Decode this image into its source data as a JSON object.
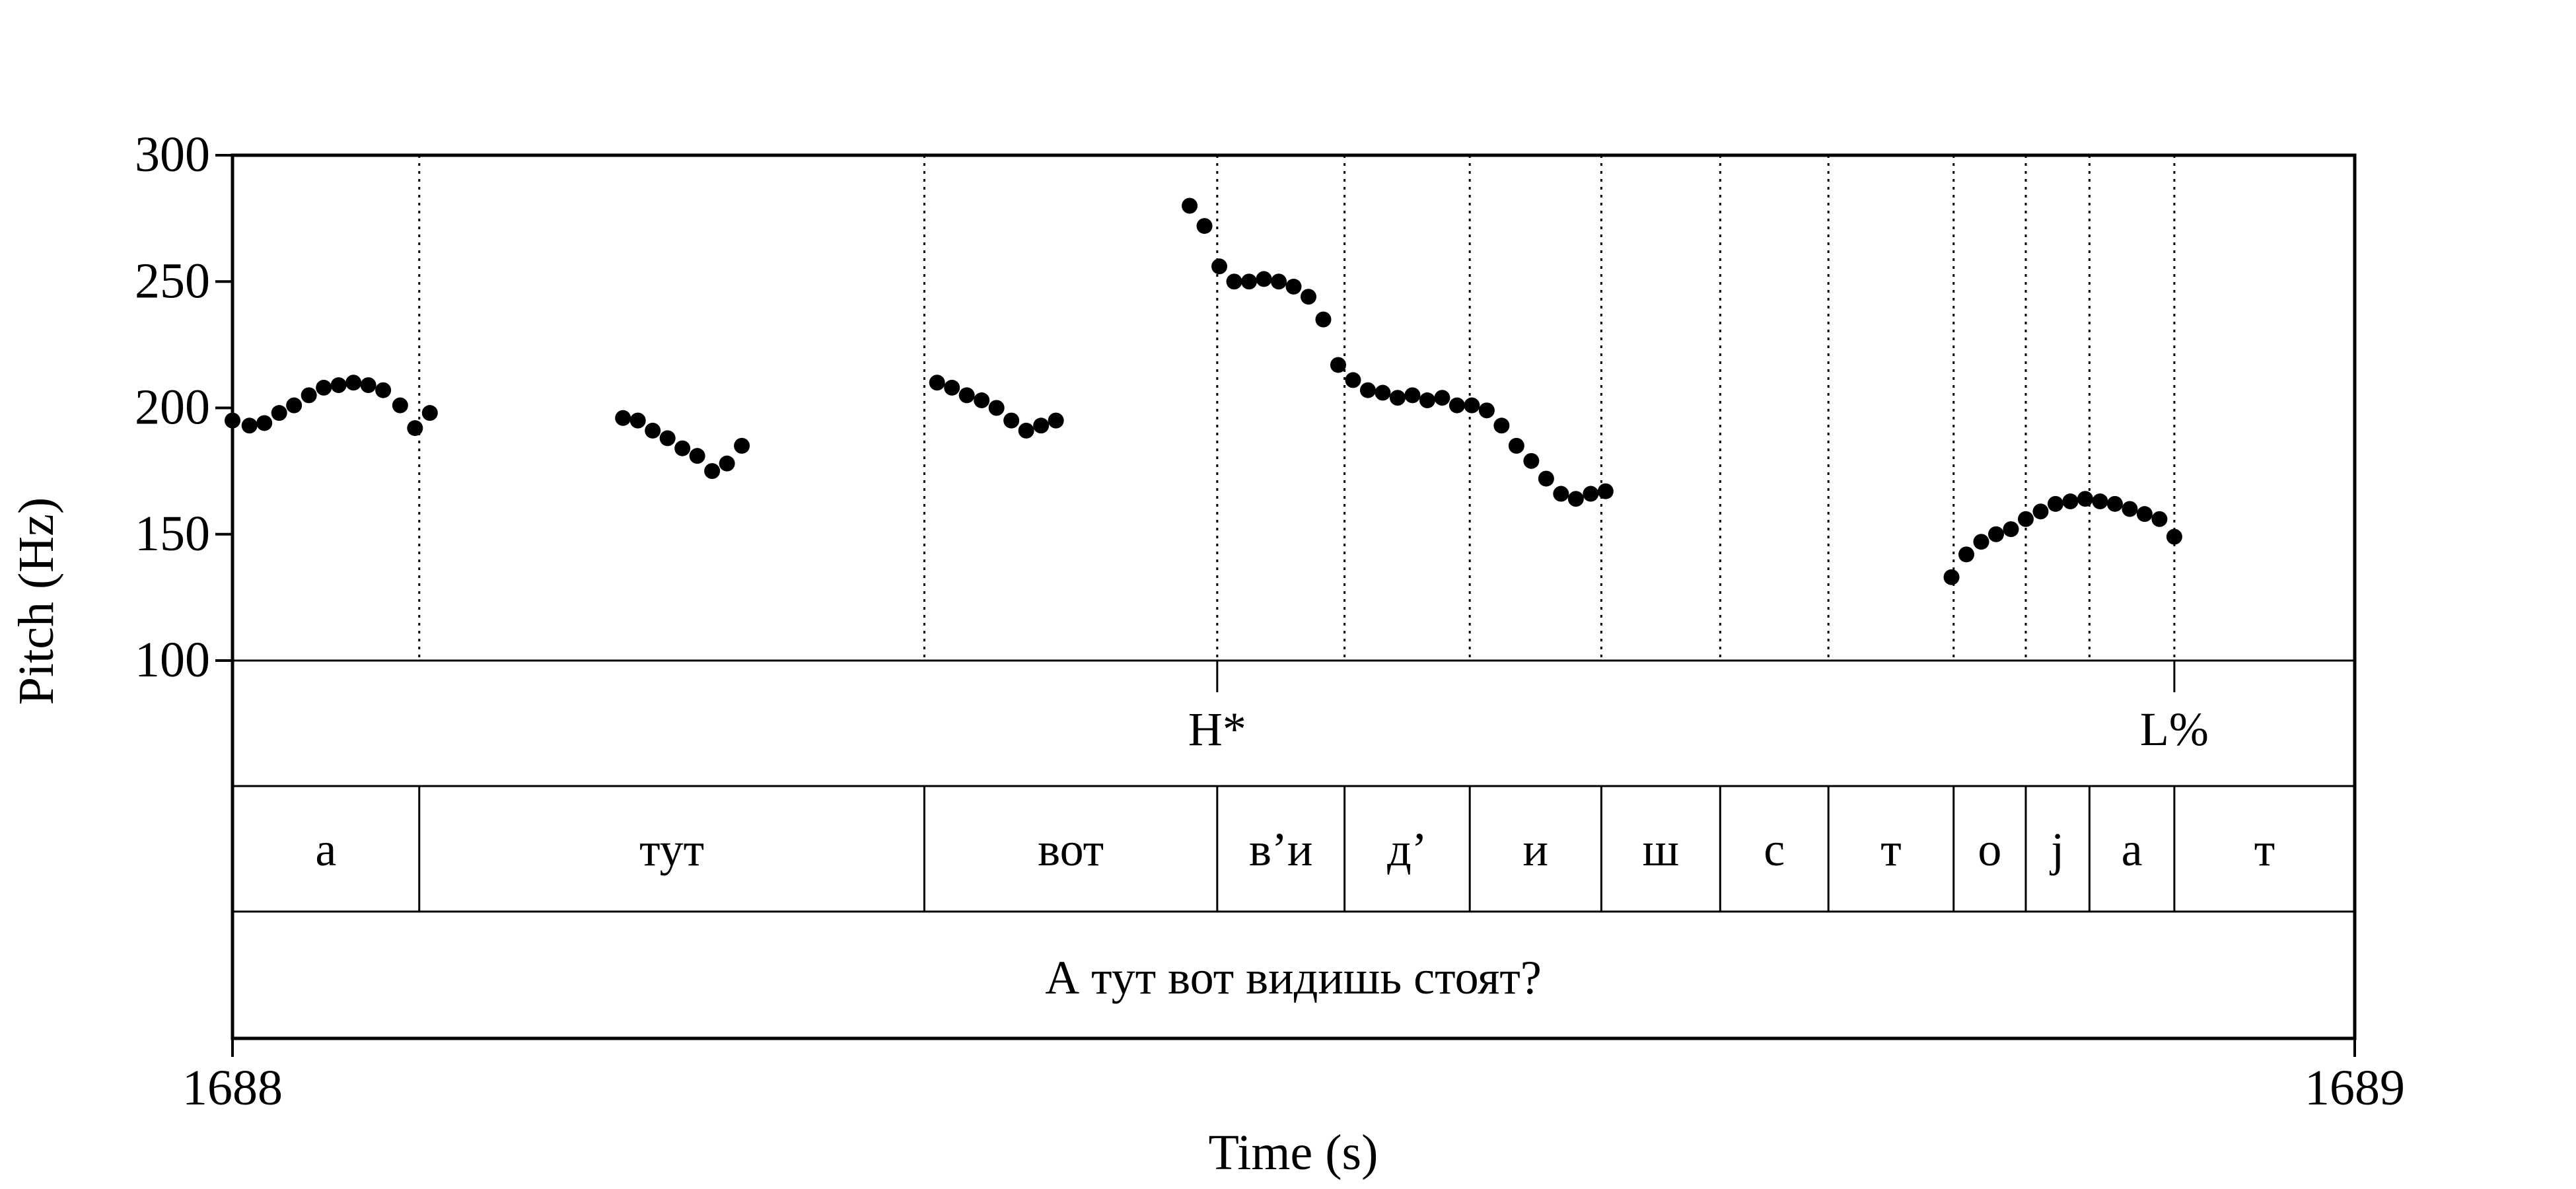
{
  "chart_data": {
    "type": "scatter",
    "xlabel": "Time (s)",
    "ylabel": "Pitch (Hz)",
    "xlim": [
      1688,
      1689
    ],
    "ylim": [
      100,
      300
    ],
    "x_ticks": [
      "1688",
      "1689"
    ],
    "y_ticks": [
      100,
      150,
      200,
      250,
      300
    ],
    "grid": false,
    "series": [
      {
        "points": [
          [
            1688.0,
            195
          ],
          [
            1688.008,
            193
          ],
          [
            1688.015,
            194
          ],
          [
            1688.022,
            198
          ],
          [
            1688.029,
            201
          ],
          [
            1688.036,
            205
          ],
          [
            1688.043,
            208
          ],
          [
            1688.05,
            209
          ],
          [
            1688.057,
            210
          ],
          [
            1688.064,
            209
          ],
          [
            1688.071,
            207
          ],
          [
            1688.079,
            201
          ],
          [
            1688.086,
            192
          ],
          [
            1688.093,
            198
          ],
          [
            1688.184,
            196
          ],
          [
            1688.191,
            195
          ],
          [
            1688.198,
            191
          ],
          [
            1688.205,
            188
          ],
          [
            1688.212,
            184
          ],
          [
            1688.219,
            181
          ],
          [
            1688.226,
            175
          ],
          [
            1688.233,
            178
          ],
          [
            1688.24,
            185
          ],
          [
            1688.332,
            210
          ],
          [
            1688.339,
            208
          ],
          [
            1688.346,
            205
          ],
          [
            1688.353,
            203
          ],
          [
            1688.36,
            200
          ],
          [
            1688.367,
            195
          ],
          [
            1688.374,
            191
          ],
          [
            1688.381,
            193
          ],
          [
            1688.388,
            195
          ],
          [
            1688.451,
            280
          ],
          [
            1688.458,
            272
          ],
          [
            1688.465,
            256
          ],
          [
            1688.472,
            250
          ],
          [
            1688.479,
            250
          ],
          [
            1688.486,
            251
          ],
          [
            1688.493,
            250
          ],
          [
            1688.5,
            248
          ],
          [
            1688.507,
            244
          ],
          [
            1688.514,
            235
          ],
          [
            1688.521,
            217
          ],
          [
            1688.528,
            211
          ],
          [
            1688.535,
            207
          ],
          [
            1688.542,
            206
          ],
          [
            1688.549,
            204
          ],
          [
            1688.556,
            205
          ],
          [
            1688.563,
            203
          ],
          [
            1688.57,
            204
          ],
          [
            1688.577,
            201
          ],
          [
            1688.584,
            201
          ],
          [
            1688.591,
            199
          ],
          [
            1688.598,
            193
          ],
          [
            1688.605,
            185
          ],
          [
            1688.612,
            179
          ],
          [
            1688.619,
            172
          ],
          [
            1688.626,
            166
          ],
          [
            1688.633,
            164
          ],
          [
            1688.64,
            166
          ],
          [
            1688.647,
            167
          ],
          [
            1688.81,
            133
          ],
          [
            1688.817,
            142
          ],
          [
            1688.824,
            147
          ],
          [
            1688.831,
            150
          ],
          [
            1688.838,
            152
          ],
          [
            1688.845,
            156
          ],
          [
            1688.852,
            159
          ],
          [
            1688.859,
            162
          ],
          [
            1688.866,
            163
          ],
          [
            1688.873,
            164
          ],
          [
            1688.88,
            163
          ],
          [
            1688.887,
            162
          ],
          [
            1688.894,
            160
          ],
          [
            1688.901,
            158
          ],
          [
            1688.908,
            156
          ],
          [
            1688.915,
            149
          ]
        ]
      }
    ],
    "tones": [
      {
        "label": "H*",
        "time": 1688.464
      },
      {
        "label": "L%",
        "time": 1688.915
      }
    ],
    "segment_boundaries": [
      1688.088,
      1688.326,
      1688.464,
      1688.524,
      1688.583,
      1688.645,
      1688.701,
      1688.752,
      1688.811,
      1688.845,
      1688.875,
      1688.915
    ],
    "segments": [
      {
        "label": "а",
        "start": 1688.0,
        "end": 1688.088
      },
      {
        "label": "тут",
        "start": 1688.088,
        "end": 1688.326
      },
      {
        "label": "вот",
        "start": 1688.326,
        "end": 1688.464
      },
      {
        "label": "в’и",
        "start": 1688.464,
        "end": 1688.524
      },
      {
        "label": "д’",
        "start": 1688.524,
        "end": 1688.583
      },
      {
        "label": "и",
        "start": 1688.583,
        "end": 1688.645
      },
      {
        "label": "ш",
        "start": 1688.645,
        "end": 1688.701
      },
      {
        "label": "с",
        "start": 1688.701,
        "end": 1688.752
      },
      {
        "label": "т",
        "start": 1688.752,
        "end": 1688.811
      },
      {
        "label": "о",
        "start": 1688.811,
        "end": 1688.845
      },
      {
        "label": "j",
        "start": 1688.845,
        "end": 1688.875
      },
      {
        "label": "а",
        "start": 1688.875,
        "end": 1688.915
      },
      {
        "label": "т",
        "start": 1688.915,
        "end": 1689.0
      }
    ],
    "sentence": "А тут вот видишь стоят?",
    "colors": {
      "points": "#000000",
      "lines": "#000000",
      "background": "#ffffff"
    }
  }
}
